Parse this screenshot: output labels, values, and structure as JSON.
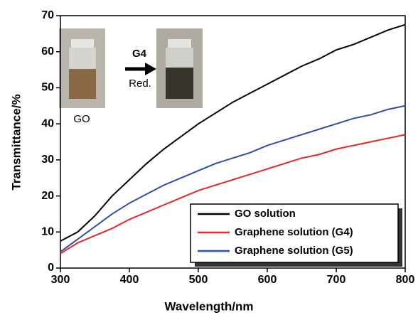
{
  "chart_data": {
    "type": "line",
    "x_label": "Wavelength/nm",
    "y_label": "Transmittance/%",
    "x": [
      300,
      325,
      350,
      375,
      400,
      425,
      450,
      475,
      500,
      525,
      550,
      575,
      600,
      625,
      650,
      675,
      700,
      725,
      750,
      775,
      800
    ],
    "series": [
      {
        "name": "GO solution",
        "color": "#000000",
        "values": [
          7.5,
          10,
          14.5,
          20,
          24.5,
          29,
          33,
          36.5,
          40,
          43,
          46,
          48.5,
          51,
          53.5,
          56,
          58,
          60.5,
          62,
          64,
          66,
          67.5
        ]
      },
      {
        "name": "Graphene solution (G4)",
        "color": "#e8262a",
        "values": [
          4,
          7,
          9,
          11,
          13.5,
          15.5,
          17.5,
          19.5,
          21.5,
          23,
          24.5,
          26,
          27.5,
          29,
          30.5,
          31.5,
          33,
          34,
          35,
          36,
          37
        ]
      },
      {
        "name": "Graphene solution (G5)",
        "color": "#2e4fa8",
        "values": [
          4.5,
          8,
          11.5,
          15,
          18,
          20.5,
          23,
          25,
          27,
          29,
          30.5,
          32,
          34,
          35.5,
          37,
          38.5,
          40,
          41.5,
          42.5,
          44,
          45
        ]
      }
    ],
    "xlim": [
      300,
      800
    ],
    "ylim": [
      0,
      70
    ],
    "xticks": [
      300,
      400,
      500,
      600,
      700,
      800
    ],
    "yticks": [
      0,
      10,
      20,
      30,
      40,
      50,
      60,
      70
    ],
    "legend": "lower right",
    "inset": {
      "before_label": "GO",
      "process_top": "G4",
      "process_bottom": "Red."
    }
  }
}
